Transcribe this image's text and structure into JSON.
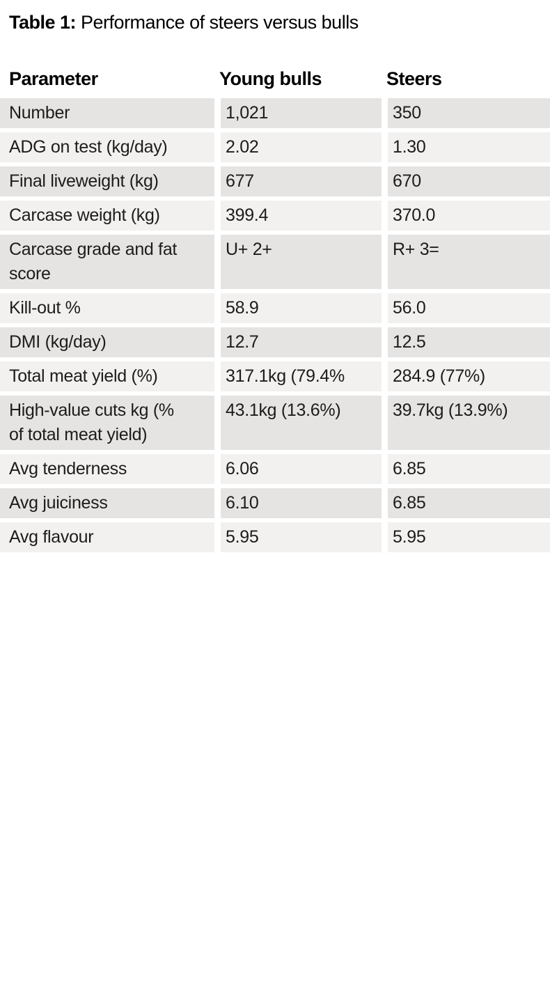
{
  "title": {
    "label": "Table 1:",
    "text": "Performance of steers versus bulls"
  },
  "table": {
    "columns": [
      "Parameter",
      "Young bulls",
      "Steers"
    ],
    "rows": [
      {
        "parameter": "Number",
        "young_bulls": "1,021",
        "steers": "350"
      },
      {
        "parameter": "ADG on test (kg/day)",
        "young_bulls": "2.02",
        "steers": "1.30"
      },
      {
        "parameter": "Final liveweight (kg)",
        "young_bulls": "677",
        "steers": "670"
      },
      {
        "parameter": "Carcase weight (kg)",
        "young_bulls": "399.4",
        "steers": "370.0"
      },
      {
        "parameter": "Carcase grade and fat\nscore",
        "young_bulls": "U+ 2+",
        "steers": "R+ 3="
      },
      {
        "parameter": "Kill-out %",
        "young_bulls": "58.9",
        "steers": "56.0"
      },
      {
        "parameter": "DMI (kg/day)",
        "young_bulls": "12.7",
        "steers": "12.5"
      },
      {
        "parameter": "Total meat yield (%)",
        "young_bulls": "317.1kg (79.4%",
        "steers": "284.9 (77%)"
      },
      {
        "parameter": "High-value cuts kg (%\nof total meat yield)",
        "young_bulls": "43.1kg (13.6%)",
        "steers": "39.7kg (13.9%)"
      },
      {
        "parameter": "Avg tenderness",
        "young_bulls": "6.06",
        "steers": "6.85"
      },
      {
        "parameter": "Avg juiciness",
        "young_bulls": "6.10",
        "steers": "6.85"
      },
      {
        "parameter": "Avg flavour",
        "young_bulls": "5.95",
        "steers": "5.95"
      }
    ]
  },
  "colors": {
    "row_dark": "#e5e4e2",
    "row_light": "#f2f1ef",
    "text": "#1d1c1a"
  }
}
